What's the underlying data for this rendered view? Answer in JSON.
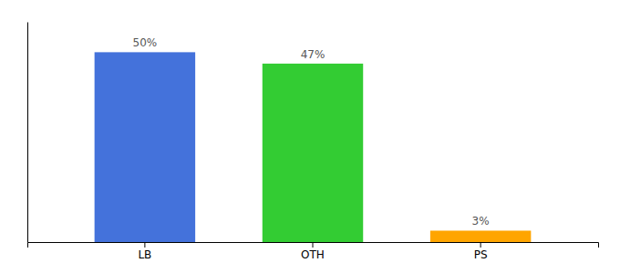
{
  "chart_data": {
    "type": "bar",
    "categories": [
      "LB",
      "OTH",
      "PS"
    ],
    "values": [
      50,
      47,
      3
    ],
    "value_labels": [
      "50%",
      "47%",
      "3%"
    ],
    "colors": [
      "#4472db",
      "#33cc33",
      "#ffa500"
    ],
    "ylim": [
      0,
      58
    ],
    "data_labels": true,
    "tick_labels": "x"
  }
}
